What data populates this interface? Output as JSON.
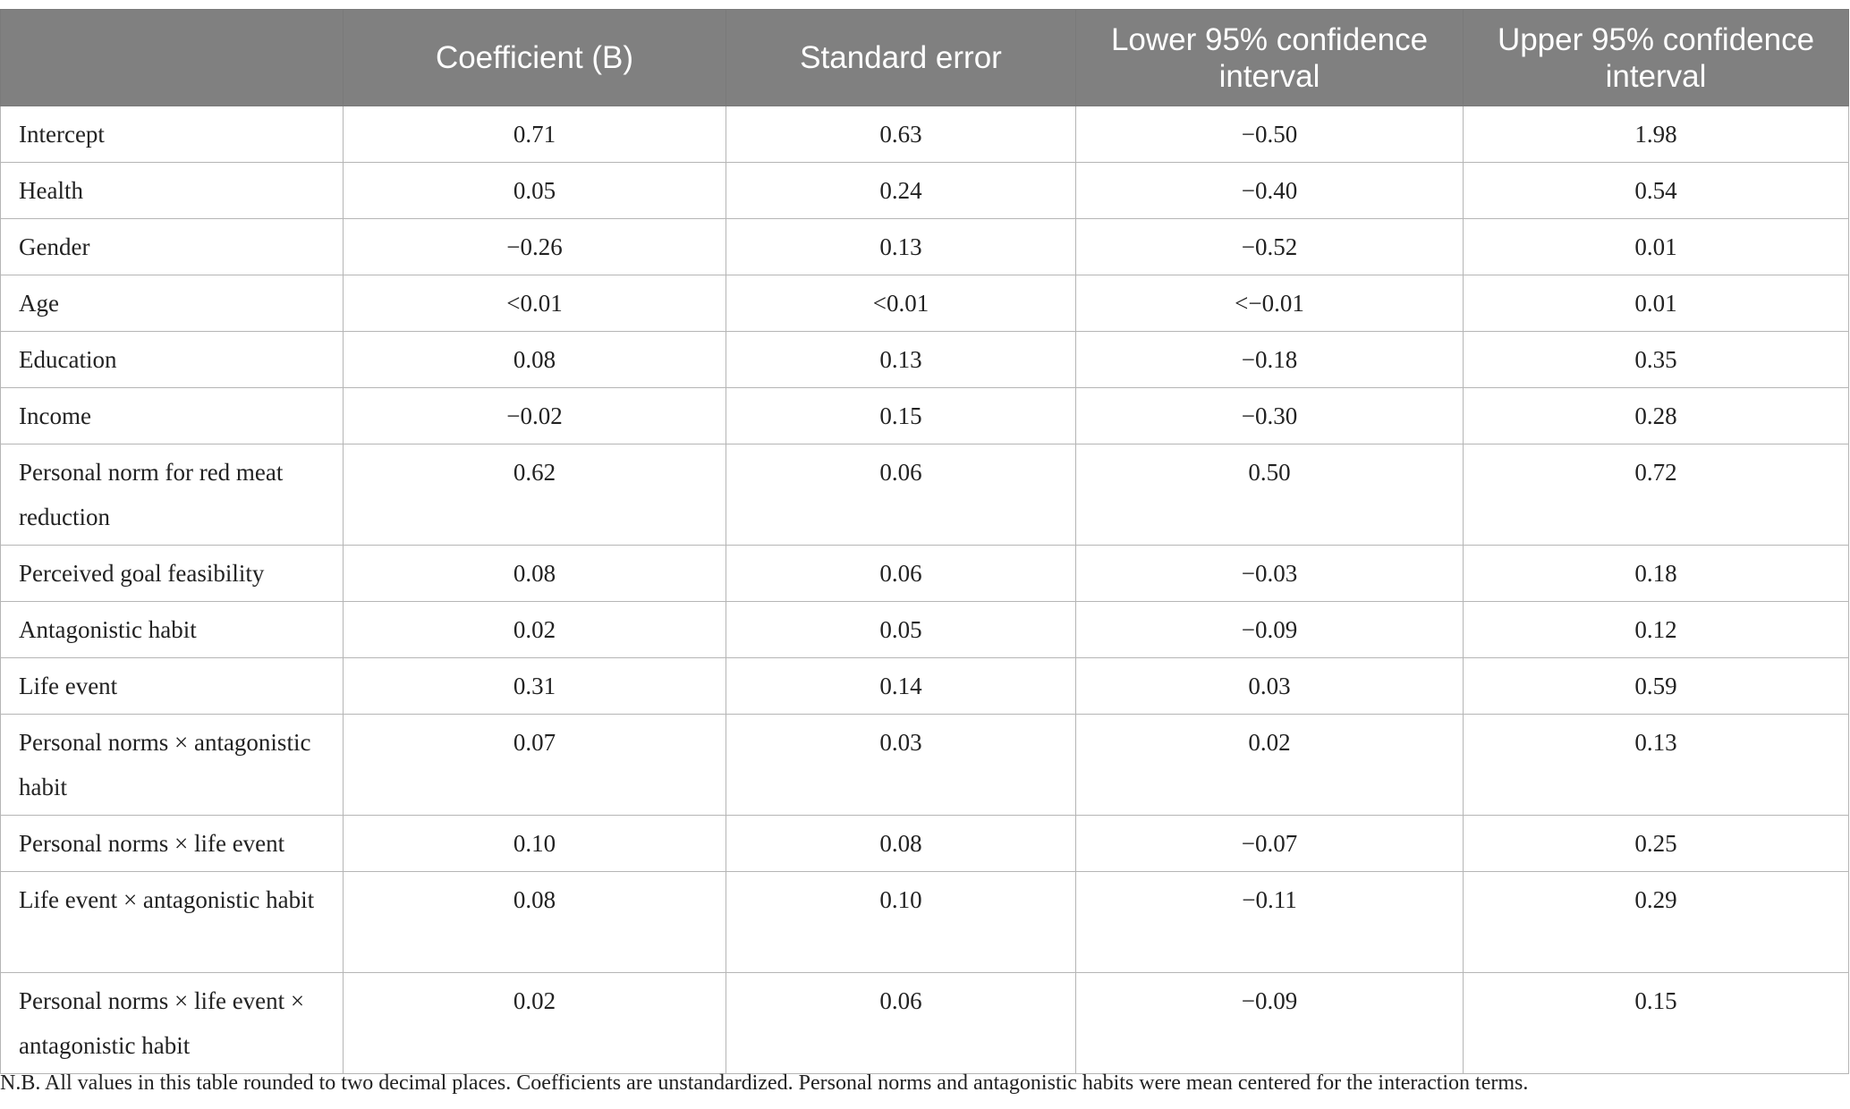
{
  "table": {
    "headers": [
      "",
      "Coefficient (B)",
      "Standard error",
      "Lower 95% confidence interval",
      "Upper 95% confidence interval"
    ],
    "rows": [
      {
        "label": "Intercept",
        "b": "0.71",
        "se": "0.63",
        "lower": "−0.50",
        "upper": "1.98"
      },
      {
        "label": "Health",
        "b": "0.05",
        "se": "0.24",
        "lower": "−0.40",
        "upper": "0.54"
      },
      {
        "label": "Gender",
        "b": "−0.26",
        "se": "0.13",
        "lower": "−0.52",
        "upper": "0.01"
      },
      {
        "label": "Age",
        "b": "<0.01",
        "se": "<0.01",
        "lower": "<−0.01",
        "upper": "0.01"
      },
      {
        "label": "Education",
        "b": "0.08",
        "se": "0.13",
        "lower": "−0.18",
        "upper": "0.35"
      },
      {
        "label": "Income",
        "b": "−0.02",
        "se": "0.15",
        "lower": "−0.30",
        "upper": "0.28"
      },
      {
        "label": "Personal norm for red meat reduction",
        "b": "0.62",
        "se": "0.06",
        "lower": "0.50",
        "upper": "0.72"
      },
      {
        "label": "Perceived goal feasibility",
        "b": "0.08",
        "se": "0.06",
        "lower": "−0.03",
        "upper": "0.18"
      },
      {
        "label": "Antagonistic habit",
        "b": "0.02",
        "se": "0.05",
        "lower": "−0.09",
        "upper": "0.12"
      },
      {
        "label": "Life event",
        "b": "0.31",
        "se": "0.14",
        "lower": "0.03",
        "upper": "0.59"
      },
      {
        "label": "Personal norms × antagonistic habit",
        "b": "0.07",
        "se": "0.03",
        "lower": "0.02",
        "upper": "0.13"
      },
      {
        "label": "Personal norms × life event",
        "b": "0.10",
        "se": "0.08",
        "lower": "−0.07",
        "upper": "0.25"
      },
      {
        "label": "Life event × antagonistic habit",
        "b": "0.08",
        "se": "0.10",
        "lower": "−0.11",
        "upper": "0.29"
      },
      {
        "label": "Personal norms × life event × antagonistic habit",
        "b": "0.02",
        "se": "0.06",
        "lower": "−0.09",
        "upper": "0.15"
      }
    ]
  },
  "note": "N.B. All values in this table rounded to two decimal places. Coefficients are unstandardized. Personal norms and antagonistic habits were mean centered for the interaction terms."
}
